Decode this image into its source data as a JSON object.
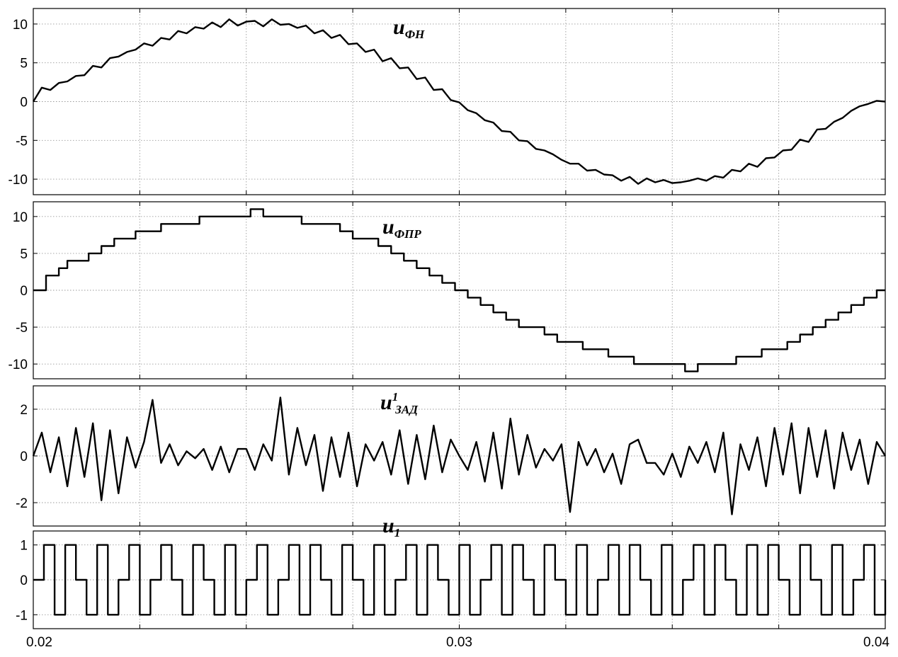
{
  "chart_data": [
    {
      "type": "line",
      "panel": "u_FN",
      "label": {
        "base": "u",
        "sub": "ФН",
        "sup": ""
      },
      "xlim": [
        0.02,
        0.04
      ],
      "ylim": [
        -12,
        12
      ],
      "yticks": [
        10,
        5,
        0,
        -5,
        -10
      ],
      "ytick_labels": [
        "10",
        "5",
        "0",
        "-5",
        "-10"
      ],
      "xgrid": [
        0.02,
        0.0225,
        0.025,
        0.0275,
        0.03,
        0.0325,
        0.035,
        0.0375,
        0.04
      ],
      "grid": true,
      "series": [
        {
          "x": [
            0.02,
            0.0202,
            0.0204,
            0.0206,
            0.0208,
            0.021,
            0.0212,
            0.0214,
            0.0216,
            0.0218,
            0.022,
            0.0222,
            0.0224,
            0.0226,
            0.0228,
            0.023,
            0.0232,
            0.0234,
            0.0236,
            0.0238,
            0.024,
            0.0242,
            0.0244,
            0.0246,
            0.0248,
            0.025,
            0.0252,
            0.0254,
            0.0256,
            0.0258,
            0.026,
            0.0262,
            0.0264,
            0.0266,
            0.0268,
            0.027,
            0.0272,
            0.0274,
            0.0276,
            0.0278,
            0.028,
            0.0282,
            0.0284,
            0.0286,
            0.0288,
            0.029,
            0.0292,
            0.0294,
            0.0296,
            0.0298,
            0.03,
            0.0302,
            0.0304,
            0.0306,
            0.0308,
            0.031,
            0.0312,
            0.0314,
            0.0316,
            0.0318,
            0.032,
            0.0322,
            0.0324,
            0.0326,
            0.0328,
            0.033,
            0.0332,
            0.0334,
            0.0336,
            0.0338,
            0.034,
            0.0342,
            0.0344,
            0.0346,
            0.0348,
            0.035,
            0.0352,
            0.0354,
            0.0356,
            0.0358,
            0.036,
            0.0362,
            0.0364,
            0.0366,
            0.0368,
            0.037,
            0.0372,
            0.0374,
            0.0376,
            0.0378,
            0.038,
            0.0382,
            0.0384,
            0.0386,
            0.0388,
            0.039,
            0.0392,
            0.0394,
            0.0396,
            0.0398,
            0.04
          ],
          "y": [
            0,
            1.8,
            1.5,
            2.4,
            2.6,
            3.3,
            3.4,
            4.6,
            4.4,
            5.6,
            5.8,
            6.4,
            6.7,
            7.5,
            7.2,
            8.2,
            8.0,
            9.1,
            8.8,
            9.6,
            9.4,
            10.2,
            9.6,
            10.6,
            9.8,
            10.3,
            10.4,
            9.7,
            10.6,
            9.9,
            10.0,
            9.5,
            9.8,
            8.8,
            9.2,
            8.2,
            8.6,
            7.4,
            7.5,
            6.4,
            6.7,
            5.2,
            5.6,
            4.3,
            4.4,
            2.9,
            3.1,
            1.5,
            1.6,
            0.2,
            -0.1,
            -1.1,
            -1.5,
            -2.4,
            -2.7,
            -3.8,
            -3.9,
            -5.0,
            -5.1,
            -6.1,
            -6.3,
            -6.8,
            -7.5,
            -8.0,
            -8.0,
            -8.9,
            -8.8,
            -9.4,
            -9.5,
            -10.2,
            -9.7,
            -10.6,
            -9.9,
            -10.4,
            -10.1,
            -10.5,
            -10.4,
            -10.2,
            -9.9,
            -10.2,
            -9.6,
            -9.8,
            -8.8,
            -9.0,
            -8.0,
            -8.4,
            -7.3,
            -7.2,
            -6.3,
            -6.2,
            -4.9,
            -5.2,
            -3.6,
            -3.5,
            -2.6,
            -2.1,
            -1.2,
            -0.6,
            -0.3,
            0.1,
            0
          ]
        }
      ]
    },
    {
      "type": "line",
      "panel": "u_FPR",
      "label": {
        "base": "u",
        "sub": "ФПР",
        "sup": ""
      },
      "xlim": [
        0.02,
        0.04
      ],
      "ylim": [
        -12,
        12
      ],
      "yticks": [
        10,
        5,
        0,
        -5,
        -10
      ],
      "ytick_labels": [
        "10",
        "5",
        "0",
        "-5",
        "-10"
      ],
      "xgrid": [
        0.02,
        0.0225,
        0.025,
        0.0275,
        0.03,
        0.0325,
        0.035,
        0.0375,
        0.04
      ],
      "grid": true,
      "series": [
        {
          "step": true,
          "x": [
            0.02,
            0.0203,
            0.0206,
            0.0208,
            0.0211,
            0.0213,
            0.0216,
            0.0219,
            0.0222,
            0.0224,
            0.0227,
            0.023,
            0.0233,
            0.0236,
            0.0239,
            0.0242,
            0.0245,
            0.0248,
            0.0251,
            0.0254,
            0.0257,
            0.026,
            0.0263,
            0.0266,
            0.0269,
            0.0272,
            0.0275,
            0.0278,
            0.0281,
            0.0284,
            0.0287,
            0.029,
            0.0293,
            0.0296,
            0.0299,
            0.0302,
            0.0305,
            0.0308,
            0.0311,
            0.0314,
            0.0317,
            0.032,
            0.0323,
            0.0326,
            0.0329,
            0.0332,
            0.0335,
            0.0338,
            0.0341,
            0.0344,
            0.0347,
            0.035,
            0.0353,
            0.0356,
            0.0359,
            0.0362,
            0.0365,
            0.0368,
            0.0371,
            0.0374,
            0.0377,
            0.038,
            0.0383,
            0.0386,
            0.0389,
            0.0392,
            0.0395,
            0.0398,
            0.04
          ],
          "y": [
            0,
            2,
            3,
            4,
            4,
            5,
            6,
            7,
            7,
            8,
            8,
            9,
            9,
            9,
            10,
            10,
            10,
            10,
            11,
            10,
            10,
            10,
            9,
            9,
            9,
            8,
            7,
            7,
            6,
            5,
            4,
            3,
            2,
            1,
            0,
            -1,
            -2,
            -3,
            -4,
            -5,
            -5,
            -6,
            -7,
            -7,
            -8,
            -8,
            -9,
            -9,
            -10,
            -10,
            -10,
            -10,
            -11,
            -10,
            -10,
            -10,
            -9,
            -9,
            -8,
            -8,
            -7,
            -6,
            -5,
            -4,
            -3,
            -2,
            -1,
            0,
            0
          ]
        }
      ]
    },
    {
      "type": "line",
      "panel": "u1_ZAD",
      "label": {
        "base": "u",
        "sub": "ЗАД",
        "sup": "1"
      },
      "xlim": [
        0.02,
        0.04
      ],
      "ylim": [
        -3,
        3
      ],
      "yticks": [
        2,
        0,
        -2
      ],
      "ytick_labels": [
        "2",
        "0",
        "-2"
      ],
      "xgrid": [
        0.02,
        0.0225,
        0.025,
        0.0275,
        0.03,
        0.0325,
        0.035,
        0.0375,
        0.04
      ],
      "grid": true,
      "series": [
        {
          "x": [
            0.02,
            0.0202,
            0.0204,
            0.0206,
            0.0208,
            0.021,
            0.0212,
            0.0214,
            0.0216,
            0.0218,
            0.022,
            0.0222,
            0.0224,
            0.0226,
            0.0228,
            0.023,
            0.0232,
            0.0234,
            0.0236,
            0.0238,
            0.024,
            0.0242,
            0.0244,
            0.0246,
            0.0248,
            0.025,
            0.0252,
            0.0254,
            0.0256,
            0.0258,
            0.026,
            0.0262,
            0.0264,
            0.0266,
            0.0268,
            0.027,
            0.0272,
            0.0274,
            0.0276,
            0.0278,
            0.028,
            0.0282,
            0.0284,
            0.0286,
            0.0288,
            0.029,
            0.0292,
            0.0294,
            0.0296,
            0.0298,
            0.03,
            0.0302,
            0.0304,
            0.0306,
            0.0308,
            0.031,
            0.0312,
            0.0314,
            0.0316,
            0.0318,
            0.032,
            0.0322,
            0.0324,
            0.0326,
            0.0328,
            0.033,
            0.0332,
            0.0334,
            0.0336,
            0.0338,
            0.034,
            0.0342,
            0.0344,
            0.0346,
            0.0348,
            0.035,
            0.0352,
            0.0354,
            0.0356,
            0.0358,
            0.036,
            0.0362,
            0.0364,
            0.0366,
            0.0368,
            0.037,
            0.0372,
            0.0374,
            0.0376,
            0.0378,
            0.038,
            0.0382,
            0.0384,
            0.0386,
            0.0388,
            0.039,
            0.0392,
            0.0394,
            0.0396,
            0.0398,
            0.04
          ],
          "y": [
            0,
            1.0,
            -0.7,
            0.8,
            -1.3,
            1.2,
            -0.9,
            1.4,
            -1.9,
            1.1,
            -1.6,
            0.8,
            -0.5,
            0.6,
            2.4,
            -0.3,
            0.5,
            -0.4,
            0.2,
            -0.1,
            0.3,
            -0.6,
            0.4,
            -0.7,
            0.3,
            0.3,
            -0.6,
            0.5,
            -0.2,
            2.5,
            -0.8,
            1.2,
            -0.4,
            0.9,
            -1.5,
            0.8,
            -0.9,
            1.0,
            -1.3,
            0.5,
            -0.2,
            0.6,
            -0.8,
            1.1,
            -1.2,
            0.9,
            -1.0,
            1.3,
            -0.7,
            0.7,
            0.0,
            -0.6,
            0.6,
            -1.1,
            1.0,
            -1.4,
            1.6,
            -0.8,
            0.9,
            -0.5,
            0.3,
            -0.2,
            0.5,
            -2.4,
            0.6,
            -0.4,
            0.3,
            -0.7,
            0.1,
            -1.2,
            0.5,
            0.7,
            -0.3,
            -0.3,
            -0.8,
            0.1,
            -0.9,
            0.4,
            -0.3,
            0.6,
            -0.7,
            1.0,
            -2.5,
            0.5,
            -0.6,
            0.8,
            -1.3,
            1.2,
            -0.8,
            1.4,
            -1.6,
            1.2,
            -0.9,
            1.1,
            -1.4,
            1.0,
            -0.6,
            0.7,
            -1.2,
            0.6,
            0
          ]
        }
      ]
    },
    {
      "type": "line",
      "panel": "u1",
      "label": {
        "base": "u",
        "sub": "1",
        "sup": ""
      },
      "xlim": [
        0.02,
        0.04
      ],
      "ylim": [
        -1.4,
        1.4
      ],
      "yticks": [
        1,
        0,
        -1
      ],
      "ytick_labels": [
        "1",
        "0",
        "-1"
      ],
      "xgrid": [
        0.02,
        0.0225,
        0.025,
        0.0275,
        0.03,
        0.0325,
        0.035,
        0.0375,
        0.04
      ],
      "xticks": [
        0.02,
        0.03,
        0.04
      ],
      "xtick_labels": [
        "0.02",
        "0.03",
        "0.04"
      ],
      "grid": true,
      "series": [
        {
          "step": true,
          "x": [
            0.02,
            0.02025,
            0.0205,
            0.02075,
            0.021,
            0.02125,
            0.0215,
            0.02175,
            0.022,
            0.02225,
            0.0225,
            0.02275,
            0.023,
            0.02325,
            0.0235,
            0.02375,
            0.024,
            0.02425,
            0.0245,
            0.02475,
            0.025,
            0.02525,
            0.0255,
            0.02575,
            0.026,
            0.02625,
            0.0265,
            0.02675,
            0.027,
            0.02725,
            0.0275,
            0.02775,
            0.028,
            0.02825,
            0.0285,
            0.02875,
            0.029,
            0.02925,
            0.0295,
            0.02975,
            0.03,
            0.03025,
            0.0305,
            0.03075,
            0.031,
            0.03125,
            0.0315,
            0.03175,
            0.032,
            0.03225,
            0.0325,
            0.03275,
            0.033,
            0.03325,
            0.0335,
            0.03375,
            0.034,
            0.03425,
            0.0345,
            0.03475,
            0.035,
            0.03525,
            0.0355,
            0.03575,
            0.036,
            0.03625,
            0.0365,
            0.03675,
            0.037,
            0.03725,
            0.0375,
            0.03775,
            0.038,
            0.03825,
            0.0385,
            0.03875,
            0.039,
            0.03925,
            0.0395,
            0.03975,
            0.04
          ],
          "y": [
            0,
            1,
            -1,
            1,
            0,
            -1,
            1,
            -1,
            0,
            1,
            -1,
            0,
            1,
            0,
            -1,
            1,
            0,
            -1,
            1,
            -1,
            0,
            1,
            -1,
            0,
            1,
            -1,
            1,
            0,
            -1,
            1,
            0,
            -1,
            1,
            -1,
            0,
            1,
            -1,
            1,
            0,
            -1,
            1,
            -1,
            0,
            1,
            -1,
            1,
            0,
            -1,
            1,
            0,
            -1,
            1,
            -1,
            0,
            1,
            -1,
            1,
            0,
            -1,
            1,
            -1,
            0,
            1,
            -1,
            1,
            0,
            -1,
            1,
            -1,
            1,
            0,
            -1,
            1,
            0,
            -1,
            1,
            -1,
            0,
            1,
            -1,
            0
          ]
        }
      ]
    }
  ]
}
